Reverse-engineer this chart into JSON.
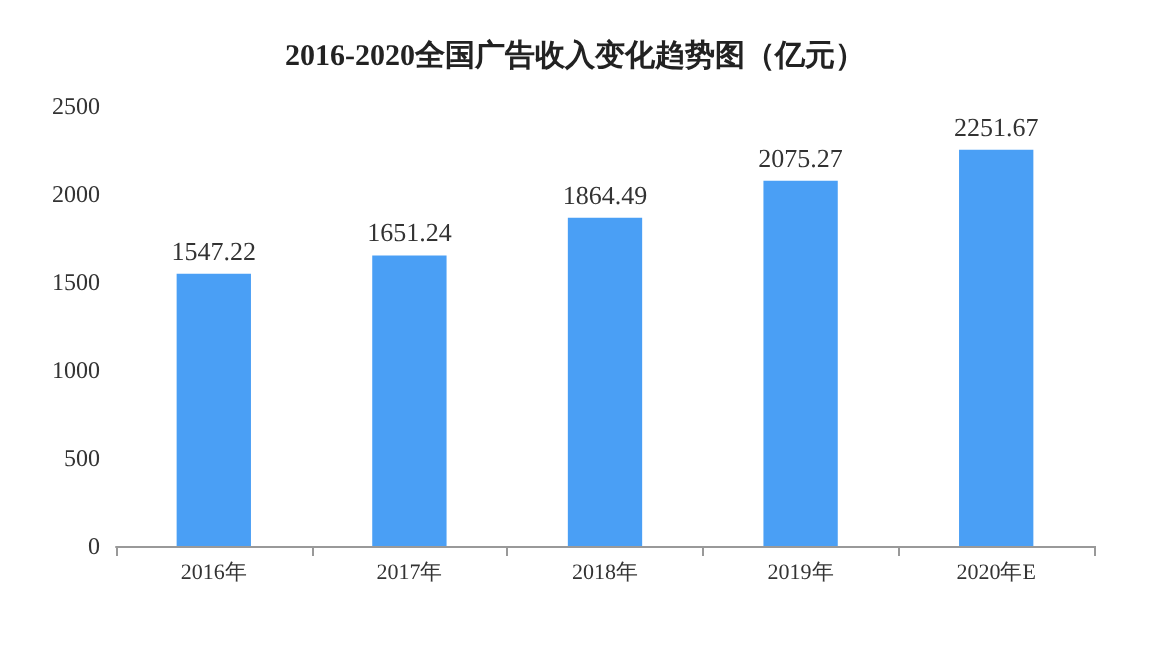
{
  "chart_data": {
    "type": "bar",
    "title": "2016-2020全国广告收入变化趋势图（亿元）",
    "categories": [
      "2016年",
      "2017年",
      "2018年",
      "2019年",
      "2020年E"
    ],
    "values": [
      1547.22,
      1651.24,
      1864.49,
      2075.27,
      2251.67
    ],
    "color": "#4a9ff5",
    "ylim": [
      0,
      2500
    ],
    "yticks": [
      0,
      500,
      1000,
      1500,
      2000,
      2500
    ],
    "grid": false,
    "data_labels": true
  }
}
